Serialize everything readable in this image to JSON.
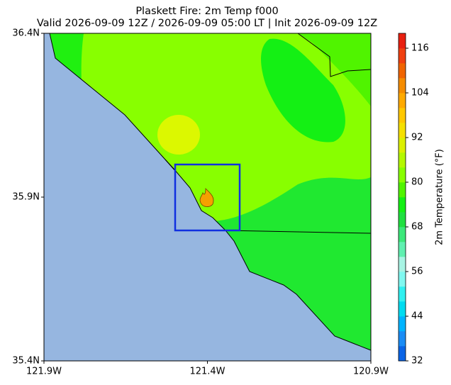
{
  "map": {
    "title": "Plaskett Fire: 2m Temp f000",
    "subtitle": "Valid 2026-09-09 12Z / 2026-09-09 05:00 LT | Init 2026-09-09 12Z",
    "xlim": [
      -121.9,
      -120.9
    ],
    "ylim": [
      35.4,
      36.4
    ],
    "xticks": [
      {
        "value": -121.9,
        "label": "121.9W"
      },
      {
        "value": -121.4,
        "label": "121.4W"
      },
      {
        "value": -120.9,
        "label": "120.9W"
      }
    ],
    "yticks": [
      {
        "value": 35.4,
        "label": "35.4N"
      },
      {
        "value": 35.9,
        "label": "35.9N"
      },
      {
        "value": 36.4,
        "label": "36.4N"
      }
    ],
    "colorbar": {
      "label": "2m Temperature (°F)",
      "lim": [
        32,
        120
      ],
      "ticks": [
        32,
        44,
        56,
        68,
        80,
        92,
        104,
        116
      ],
      "colors": [
        "#0a64e6",
        "#1a8cf5",
        "#00b4ff",
        "#00dcf0",
        "#30f0f0",
        "#80f8f0",
        "#a8f4e4",
        "#60f0b0",
        "#3ce87a",
        "#20e040",
        "#14f014",
        "#50f400",
        "#88ff00",
        "#b4f800",
        "#dcf000",
        "#f5e000",
        "#ffc800",
        "#ffaa00",
        "#f58c00",
        "#f06400",
        "#f04010",
        "#e82010"
      ]
    }
  }
}
